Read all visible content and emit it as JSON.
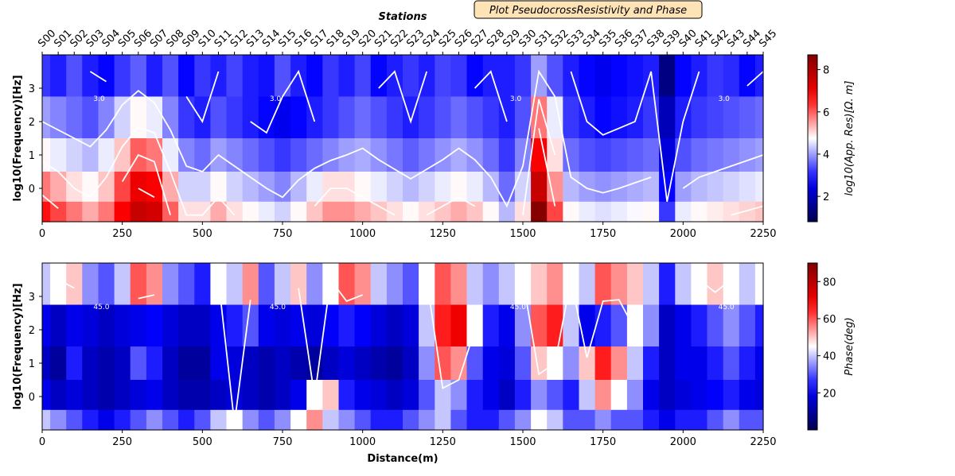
{
  "figure": {
    "badge_text": "Plot PseudocrossResistivity and Phase",
    "stations_title": "Stations",
    "badge_fill": "#fde3b6"
  },
  "chart_data": [
    {
      "type": "heatmap",
      "name": "apparent-resistivity",
      "xlabel": "",
      "ylabel": "log10(Frequency)[Hz]",
      "colorbar_label": "log10(App. Res)[Ω. m]",
      "colormap": "seismic",
      "xlim": [
        0,
        2250
      ],
      "ylim": [
        -1,
        4
      ],
      "xticks": [
        0,
        250,
        500,
        750,
        1000,
        1250,
        1500,
        1750,
        2000,
        2250
      ],
      "yticks": [
        0,
        1,
        2,
        3
      ],
      "clim": [
        0.8,
        8.7
      ],
      "colorbar_ticks": [
        2,
        4,
        6,
        8
      ],
      "contour_label": "3.0",
      "stations": [
        "S00",
        "S01",
        "S02",
        "S03",
        "S04",
        "S05",
        "S06",
        "S07",
        "S08",
        "S09",
        "S10",
        "S11",
        "S12",
        "S13",
        "S14",
        "S15",
        "S16",
        "S17",
        "S18",
        "S19",
        "S20",
        "S21",
        "S22",
        "S23",
        "S24",
        "S25",
        "S26",
        "S27",
        "S28",
        "S29",
        "S30",
        "S31",
        "S32",
        "S33",
        "S34",
        "S35",
        "S36",
        "S37",
        "S38",
        "S39",
        "S40",
        "S41",
        "S42",
        "S43",
        "S44",
        "S45"
      ],
      "station_x": [
        0,
        50,
        100,
        150,
        200,
        250,
        300,
        350,
        400,
        450,
        500,
        550,
        600,
        650,
        700,
        750,
        800,
        850,
        900,
        950,
        1000,
        1050,
        1100,
        1150,
        1200,
        1250,
        1300,
        1350,
        1400,
        1450,
        1500,
        1550,
        1600,
        1650,
        1700,
        1750,
        1800,
        1850,
        1900,
        1950,
        2000,
        2050,
        2100,
        2150,
        2200,
        2250
      ],
      "log10_frequency": [
        3.5,
        2.0,
        1.0,
        0.0,
        -0.8
      ],
      "values": [
        [
          3.2,
          3.0,
          3.4,
          3.0,
          2.8,
          3.2,
          3.5,
          3.0,
          3.4,
          2.8,
          3.2,
          3.0,
          3.3,
          3.0,
          2.9,
          3.4,
          3.0,
          2.8,
          3.2,
          3.0,
          3.3,
          2.8,
          3.0,
          3.2,
          3.0,
          3.3,
          3.2,
          2.8,
          3.0,
          3.0,
          3.2,
          4.0,
          3.4,
          3.0,
          2.8,
          2.6,
          2.8,
          2.9,
          3.0,
          1.4,
          2.8,
          3.0,
          3.2,
          3.1,
          2.8,
          3.0
        ],
        [
          4.0,
          3.8,
          3.6,
          3.4,
          3.8,
          4.4,
          4.8,
          4.6,
          3.8,
          3.2,
          3.0,
          3.4,
          3.2,
          3.0,
          2.8,
          2.6,
          2.8,
          3.0,
          3.2,
          3.4,
          3.6,
          3.4,
          3.2,
          3.0,
          3.2,
          3.4,
          3.6,
          3.4,
          3.2,
          3.0,
          3.4,
          5.8,
          4.6,
          3.2,
          3.0,
          2.8,
          2.9,
          3.0,
          3.2,
          2.0,
          3.0,
          3.2,
          3.3,
          3.4,
          3.5,
          3.6
        ],
        [
          4.8,
          4.6,
          4.4,
          4.2,
          4.6,
          5.2,
          6.0,
          5.8,
          4.6,
          3.8,
          3.6,
          4.0,
          3.8,
          3.6,
          3.4,
          3.2,
          3.4,
          3.6,
          3.8,
          4.0,
          4.1,
          3.9,
          3.7,
          3.5,
          3.7,
          3.9,
          4.1,
          3.9,
          3.6,
          3.2,
          3.8,
          6.8,
          5.0,
          3.6,
          3.4,
          3.3,
          3.4,
          3.5,
          3.6,
          2.4,
          3.4,
          3.6,
          3.7,
          3.8,
          3.9,
          4.0
        ],
        [
          5.8,
          5.4,
          5.0,
          4.8,
          5.2,
          6.2,
          7.0,
          6.8,
          5.4,
          4.4,
          4.4,
          4.8,
          4.4,
          4.2,
          4.0,
          3.8,
          4.2,
          4.6,
          5.0,
          5.0,
          4.8,
          4.6,
          4.4,
          4.2,
          4.4,
          4.6,
          4.8,
          4.6,
          4.2,
          3.6,
          4.4,
          7.6,
          5.6,
          4.2,
          4.0,
          3.9,
          4.0,
          4.1,
          4.2,
          2.8,
          4.0,
          4.2,
          4.3,
          4.4,
          4.5,
          4.6
        ],
        [
          6.6,
          6.2,
          5.8,
          5.4,
          5.8,
          6.8,
          7.6,
          7.4,
          6.0,
          5.0,
          5.0,
          5.4,
          5.0,
          4.8,
          4.6,
          4.4,
          4.8,
          5.2,
          5.6,
          5.6,
          5.4,
          5.2,
          5.0,
          4.8,
          5.0,
          5.2,
          5.4,
          5.2,
          4.8,
          4.2,
          5.0,
          8.6,
          6.2,
          4.8,
          4.6,
          4.5,
          4.6,
          4.7,
          4.8,
          3.2,
          4.6,
          4.8,
          4.9,
          5.0,
          5.1,
          5.2
        ]
      ]
    },
    {
      "type": "heatmap",
      "name": "phase",
      "xlabel": "Distance(m)",
      "ylabel": "log10(Frequency)[Hz]",
      "colorbar_label": "Phase(deg)",
      "colormap": "seismic",
      "xlim": [
        0,
        2250
      ],
      "ylim": [
        -1,
        4
      ],
      "xticks": [
        0,
        250,
        500,
        750,
        1000,
        1250,
        1500,
        1750,
        2000,
        2250
      ],
      "yticks": [
        0,
        1,
        2,
        3
      ],
      "clim": [
        0,
        90
      ],
      "colorbar_ticks": [
        20,
        40,
        60,
        80
      ],
      "contour_label": "45.0",
      "log10_frequency": [
        3.5,
        2.0,
        1.0,
        0.0,
        -0.8
      ],
      "values": [
        [
          40,
          45,
          50,
          35,
          30,
          40,
          60,
          55,
          35,
          30,
          25,
          45,
          40,
          55,
          30,
          40,
          50,
          35,
          45,
          60,
          55,
          40,
          35,
          30,
          45,
          60,
          55,
          40,
          35,
          40,
          45,
          50,
          55,
          45,
          40,
          60,
          55,
          50,
          40,
          25,
          40,
          45,
          50,
          45,
          40,
          45
        ],
        [
          20,
          15,
          20,
          18,
          15,
          18,
          20,
          22,
          18,
          15,
          15,
          20,
          25,
          30,
          20,
          18,
          20,
          18,
          22,
          25,
          22,
          18,
          15,
          18,
          40,
          65,
          70,
          45,
          25,
          20,
          35,
          60,
          65,
          40,
          20,
          25,
          30,
          45,
          35,
          15,
          20,
          25,
          30,
          35,
          30,
          25
        ],
        [
          15,
          10,
          25,
          15,
          12,
          15,
          30,
          25,
          15,
          10,
          10,
          20,
          18,
          15,
          12,
          15,
          12,
          10,
          15,
          18,
          15,
          12,
          10,
          15,
          35,
          60,
          55,
          30,
          20,
          18,
          30,
          50,
          45,
          35,
          50,
          65,
          55,
          40,
          25,
          15,
          20,
          20,
          25,
          30,
          25,
          20
        ],
        [
          20,
          15,
          18,
          15,
          12,
          15,
          18,
          20,
          15,
          12,
          12,
          15,
          18,
          15,
          12,
          15,
          20,
          45,
          50,
          25,
          20,
          18,
          15,
          18,
          30,
          40,
          35,
          25,
          20,
          15,
          25,
          35,
          30,
          25,
          40,
          55,
          45,
          35,
          20,
          15,
          18,
          20,
          22,
          25,
          20,
          18
        ],
        [
          40,
          35,
          30,
          25,
          20,
          25,
          30,
          35,
          30,
          25,
          30,
          40,
          45,
          35,
          30,
          35,
          45,
          55,
          40,
          35,
          30,
          25,
          25,
          30,
          35,
          40,
          30,
          25,
          25,
          30,
          35,
          45,
          40,
          30,
          30,
          35,
          30,
          30,
          25,
          20,
          25,
          25,
          30,
          35,
          30,
          30
        ]
      ]
    }
  ]
}
